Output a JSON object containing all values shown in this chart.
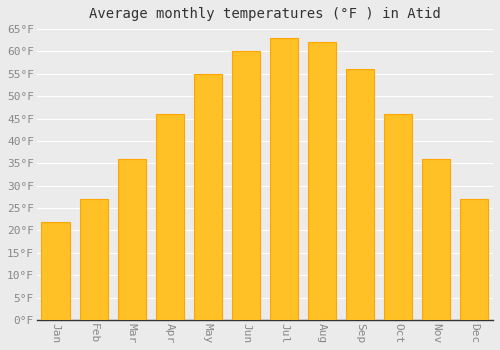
{
  "title": "Average monthly temperatures (°F ) in Atid",
  "months": [
    "Jan",
    "Feb",
    "Mar",
    "Apr",
    "May",
    "Jun",
    "Jul",
    "Aug",
    "Sep",
    "Oct",
    "Nov",
    "Dec"
  ],
  "values": [
    22,
    27,
    36,
    46,
    55,
    60,
    63,
    62,
    56,
    46,
    36,
    27
  ],
  "bar_color": "#FFC125",
  "bar_edge_color": "#FFA500",
  "background_color": "#ebebeb",
  "grid_color": "#ffffff",
  "ylim": [
    0,
    65
  ],
  "yticks": [
    0,
    5,
    10,
    15,
    20,
    25,
    30,
    35,
    40,
    45,
    50,
    55,
    60,
    65
  ],
  "title_fontsize": 10,
  "tick_fontsize": 8,
  "tick_color": "#888888",
  "axis_color": "#333333",
  "font_family": "monospace"
}
